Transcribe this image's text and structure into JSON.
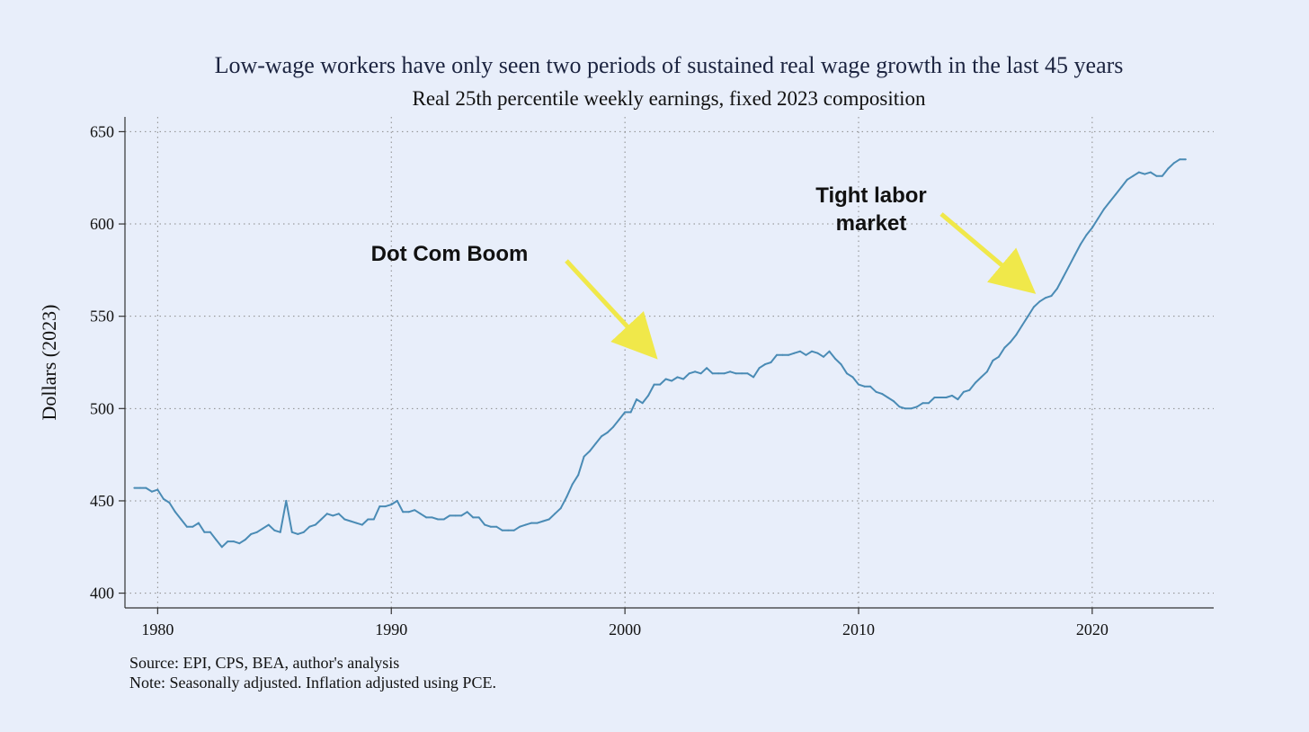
{
  "chart_data": {
    "type": "line",
    "title": "Low-wage workers have only seen two periods of sustained real wage growth in the last 45 years",
    "subtitle": "Real 25th percentile weekly earnings, fixed 2023 composition",
    "xlabel": "",
    "ylabel": "Dollars (2023)",
    "xlim": [
      1978.6,
      2025.2
    ],
    "ylim": [
      392,
      658
    ],
    "xticks": [
      1980,
      1990,
      2000,
      2010,
      2020
    ],
    "yticks": [
      400,
      450,
      500,
      550,
      600,
      650
    ],
    "grid": true,
    "line_color": "#4a8bb5",
    "series": [
      {
        "name": "Real 25th percentile weekly earnings",
        "x": [
          1979.0,
          1979.25,
          1979.5,
          1979.75,
          1980.0,
          1980.25,
          1980.5,
          1980.75,
          1981.0,
          1981.25,
          1981.5,
          1981.75,
          1982.0,
          1982.25,
          1982.5,
          1982.75,
          1983.0,
          1983.25,
          1983.5,
          1983.75,
          1984.0,
          1984.25,
          1984.5,
          1984.75,
          1985.0,
          1985.25,
          1985.5,
          1985.75,
          1986.0,
          1986.25,
          1986.5,
          1986.75,
          1987.0,
          1987.25,
          1987.5,
          1987.75,
          1988.0,
          1988.25,
          1988.5,
          1988.75,
          1989.0,
          1989.25,
          1989.5,
          1989.75,
          1990.0,
          1990.25,
          1990.5,
          1990.75,
          1991.0,
          1991.25,
          1991.5,
          1991.75,
          1992.0,
          1992.25,
          1992.5,
          1992.75,
          1993.0,
          1993.25,
          1993.5,
          1993.75,
          1994.0,
          1994.25,
          1994.5,
          1994.75,
          1995.0,
          1995.25,
          1995.5,
          1995.75,
          1996.0,
          1996.25,
          1996.5,
          1996.75,
          1997.0,
          1997.25,
          1997.5,
          1997.75,
          1998.0,
          1998.25,
          1998.5,
          1998.75,
          1999.0,
          1999.25,
          1999.5,
          1999.75,
          2000.0,
          2000.25,
          2000.5,
          2000.75,
          2001.0,
          2001.25,
          2001.5,
          2001.75,
          2002.0,
          2002.25,
          2002.5,
          2002.75,
          2003.0,
          2003.25,
          2003.5,
          2003.75,
          2004.0,
          2004.25,
          2004.5,
          2004.75,
          2005.0,
          2005.25,
          2005.5,
          2005.75,
          2006.0,
          2006.25,
          2006.5,
          2006.75,
          2007.0,
          2007.25,
          2007.5,
          2007.75,
          2008.0,
          2008.25,
          2008.5,
          2008.75,
          2009.0,
          2009.25,
          2009.5,
          2009.75,
          2010.0,
          2010.25,
          2010.5,
          2010.75,
          2011.0,
          2011.25,
          2011.5,
          2011.75,
          2012.0,
          2012.25,
          2012.5,
          2012.75,
          2013.0,
          2013.25,
          2013.5,
          2013.75,
          2014.0,
          2014.25,
          2014.5,
          2014.75,
          2015.0,
          2015.25,
          2015.5,
          2015.75,
          2016.0,
          2016.25,
          2016.5,
          2016.75,
          2017.0,
          2017.25,
          2017.5,
          2017.75,
          2018.0,
          2018.25,
          2018.5,
          2018.75,
          2019.0,
          2019.25,
          2019.5,
          2019.75,
          2020.0,
          2020.25,
          2020.5,
          2020.75,
          2021.0,
          2021.25,
          2021.5,
          2021.75,
          2022.0,
          2022.25,
          2022.5,
          2022.75,
          2023.0,
          2023.25,
          2023.5,
          2023.75,
          2024.0
        ],
        "values": [
          457,
          457,
          457,
          455,
          456,
          451,
          449,
          444,
          440,
          436,
          436,
          438,
          433,
          433,
          429,
          425,
          428,
          428,
          427,
          429,
          432,
          433,
          435,
          437,
          434,
          433,
          450,
          433,
          432,
          433,
          436,
          437,
          440,
          443,
          442,
          443,
          440,
          439,
          438,
          437,
          440,
          440,
          447,
          447,
          448,
          450,
          444,
          444,
          445,
          443,
          441,
          441,
          440,
          440,
          442,
          442,
          442,
          444,
          441,
          441,
          437,
          436,
          436,
          434,
          434,
          434,
          436,
          437,
          438,
          438,
          439,
          440,
          443,
          446,
          452,
          459,
          464,
          474,
          477,
          481,
          485,
          487,
          490,
          494,
          498,
          498,
          505,
          503,
          507,
          513,
          513,
          516,
          515,
          517,
          516,
          519,
          520,
          519,
          522,
          519,
          519,
          519,
          520,
          519,
          519,
          519,
          517,
          522,
          524,
          525,
          529,
          529,
          529,
          530,
          531,
          529,
          531,
          530,
          528,
          531,
          527,
          524,
          519,
          517,
          513,
          512,
          512,
          509,
          508,
          506,
          504,
          501,
          500,
          500,
          501,
          503,
          503,
          506,
          506,
          506,
          507,
          505,
          509,
          510,
          514,
          517,
          520,
          526,
          528,
          533,
          536,
          540,
          545,
          550,
          555,
          558,
          560,
          561,
          565,
          571,
          577,
          583,
          589,
          594,
          598,
          603,
          608,
          612,
          616,
          620,
          624,
          626,
          628,
          627,
          628,
          626,
          626,
          630,
          633,
          635,
          635
        ]
      }
    ],
    "annotations": [
      {
        "text": "Dot Com Boom"
      },
      {
        "text": "Tight labor",
        "text2": "market"
      }
    ],
    "arrow_color": "#f0e84a"
  },
  "footnotes": {
    "source": "Source: EPI, CPS, BEA, author's analysis",
    "note": "Note: Seasonally adjusted. Inflation adjusted using PCE."
  }
}
